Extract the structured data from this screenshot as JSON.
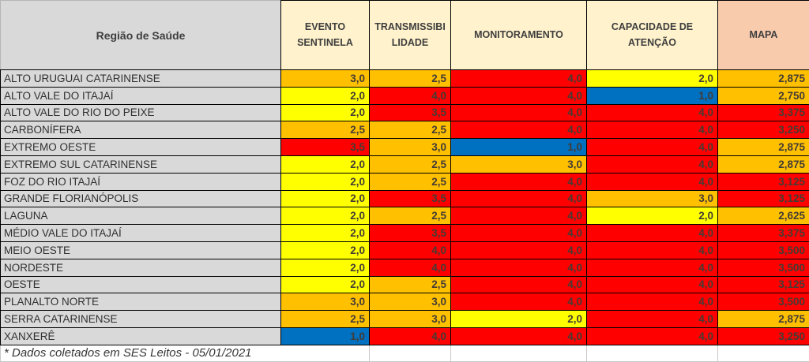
{
  "colors": {
    "yellow": "#FFFF00",
    "orange": "#FFC000",
    "red": "#FF0000",
    "blue": "#0070C0",
    "cream": "#FFF2CC",
    "peach": "#F8CBAD",
    "gray": "#D9D9D9"
  },
  "header_bgs": [
    "gray",
    "cream",
    "cream",
    "cream",
    "cream",
    "peach"
  ],
  "column_keys": [
    "evento-sentinela",
    "transmissibilidade",
    "monitoramento",
    "capacidade-de-atencao",
    "mapa"
  ],
  "chart_data": {
    "type": "table",
    "columns": [
      "Região de Saúde",
      "EVENTO SENTINELA",
      "TRANSMISSIBILIDADE",
      "MONITORAMENTO",
      "CAPACIDADE DE ATENÇÃO",
      "MAPA"
    ],
    "rows": [
      {
        "region": "ALTO URUGUAI CATARINENSE",
        "cells": [
          {
            "value": "3,0",
            "color": "orange"
          },
          {
            "value": "2,5",
            "color": "orange"
          },
          {
            "value": "4,0",
            "color": "red"
          },
          {
            "value": "2,0",
            "color": "yellow"
          },
          {
            "value": "2,875",
            "color": "orange"
          }
        ]
      },
      {
        "region": "ALTO VALE DO ITAJAÍ",
        "cells": [
          {
            "value": "2,0",
            "color": "yellow"
          },
          {
            "value": "4,0",
            "color": "red"
          },
          {
            "value": "4,0",
            "color": "red"
          },
          {
            "value": "1,0",
            "color": "blue"
          },
          {
            "value": "2,750",
            "color": "orange"
          }
        ]
      },
      {
        "region": "ALTO VALE DO RIO DO PEIXE",
        "cells": [
          {
            "value": "2,0",
            "color": "yellow"
          },
          {
            "value": "3,5",
            "color": "red"
          },
          {
            "value": "4,0",
            "color": "red"
          },
          {
            "value": "4,0",
            "color": "red"
          },
          {
            "value": "3,375",
            "color": "red"
          }
        ]
      },
      {
        "region": "CARBONÍFERA",
        "cells": [
          {
            "value": "2,5",
            "color": "orange"
          },
          {
            "value": "2,5",
            "color": "orange"
          },
          {
            "value": "4,0",
            "color": "red"
          },
          {
            "value": "4,0",
            "color": "red"
          },
          {
            "value": "3,250",
            "color": "red"
          }
        ]
      },
      {
        "region": "EXTREMO OESTE",
        "cells": [
          {
            "value": "3,5",
            "color": "red"
          },
          {
            "value": "3,0",
            "color": "orange"
          },
          {
            "value": "1,0",
            "color": "blue"
          },
          {
            "value": "4,0",
            "color": "red"
          },
          {
            "value": "2,875",
            "color": "orange"
          }
        ]
      },
      {
        "region": "EXTREMO SUL CATARINENSE",
        "cells": [
          {
            "value": "2,0",
            "color": "yellow"
          },
          {
            "value": "2,5",
            "color": "orange"
          },
          {
            "value": "3,0",
            "color": "orange"
          },
          {
            "value": "4,0",
            "color": "red"
          },
          {
            "value": "2,875",
            "color": "orange"
          }
        ]
      },
      {
        "region": "FOZ DO RIO ITAJAÍ",
        "cells": [
          {
            "value": "2,0",
            "color": "yellow"
          },
          {
            "value": "2,5",
            "color": "orange"
          },
          {
            "value": "4,0",
            "color": "red"
          },
          {
            "value": "4,0",
            "color": "red"
          },
          {
            "value": "3,125",
            "color": "red"
          }
        ]
      },
      {
        "region": "GRANDE FLORIANÓPOLIS",
        "cells": [
          {
            "value": "2,0",
            "color": "yellow"
          },
          {
            "value": "3,5",
            "color": "red"
          },
          {
            "value": "4,0",
            "color": "red"
          },
          {
            "value": "3,0",
            "color": "orange"
          },
          {
            "value": "3,125",
            "color": "red"
          }
        ]
      },
      {
        "region": "LAGUNA",
        "cells": [
          {
            "value": "2,0",
            "color": "yellow"
          },
          {
            "value": "2,5",
            "color": "orange"
          },
          {
            "value": "4,0",
            "color": "red"
          },
          {
            "value": "2,0",
            "color": "yellow"
          },
          {
            "value": "2,625",
            "color": "orange"
          }
        ]
      },
      {
        "region": "MÉDIO VALE DO ITAJAÍ",
        "cells": [
          {
            "value": "2,0",
            "color": "yellow"
          },
          {
            "value": "3,5",
            "color": "red"
          },
          {
            "value": "4,0",
            "color": "red"
          },
          {
            "value": "4,0",
            "color": "red"
          },
          {
            "value": "3,375",
            "color": "red"
          }
        ]
      },
      {
        "region": "MEIO OESTE",
        "cells": [
          {
            "value": "2,0",
            "color": "yellow"
          },
          {
            "value": "4,0",
            "color": "red"
          },
          {
            "value": "4,0",
            "color": "red"
          },
          {
            "value": "4,0",
            "color": "red"
          },
          {
            "value": "3,500",
            "color": "red"
          }
        ]
      },
      {
        "region": "NORDESTE",
        "cells": [
          {
            "value": "2,0",
            "color": "yellow"
          },
          {
            "value": "4,0",
            "color": "red"
          },
          {
            "value": "4,0",
            "color": "red"
          },
          {
            "value": "4,0",
            "color": "red"
          },
          {
            "value": "3,500",
            "color": "red"
          }
        ]
      },
      {
        "region": "OESTE",
        "cells": [
          {
            "value": "2,0",
            "color": "yellow"
          },
          {
            "value": "2,5",
            "color": "orange"
          },
          {
            "value": "4,0",
            "color": "red"
          },
          {
            "value": "4,0",
            "color": "red"
          },
          {
            "value": "3,125",
            "color": "red"
          }
        ]
      },
      {
        "region": "PLANALTO NORTE",
        "cells": [
          {
            "value": "3,0",
            "color": "orange"
          },
          {
            "value": "3,0",
            "color": "orange"
          },
          {
            "value": "4,0",
            "color": "red"
          },
          {
            "value": "4,0",
            "color": "red"
          },
          {
            "value": "3,500",
            "color": "red"
          }
        ]
      },
      {
        "region": "SERRA CATARINENSE",
        "cells": [
          {
            "value": "2,5",
            "color": "orange"
          },
          {
            "value": "3,0",
            "color": "orange"
          },
          {
            "value": "2,0",
            "color": "yellow"
          },
          {
            "value": "4,0",
            "color": "red"
          },
          {
            "value": "2,875",
            "color": "orange"
          }
        ]
      },
      {
        "region": "XANXERÊ",
        "cells": [
          {
            "value": "1,0",
            "color": "blue"
          },
          {
            "value": "4,0",
            "color": "red"
          },
          {
            "value": "4,0",
            "color": "red"
          },
          {
            "value": "4,0",
            "color": "red"
          },
          {
            "value": "3,250",
            "color": "red"
          }
        ]
      }
    ],
    "footnote": "* Dados coletados em SES Leitos - 05/01/2021"
  }
}
